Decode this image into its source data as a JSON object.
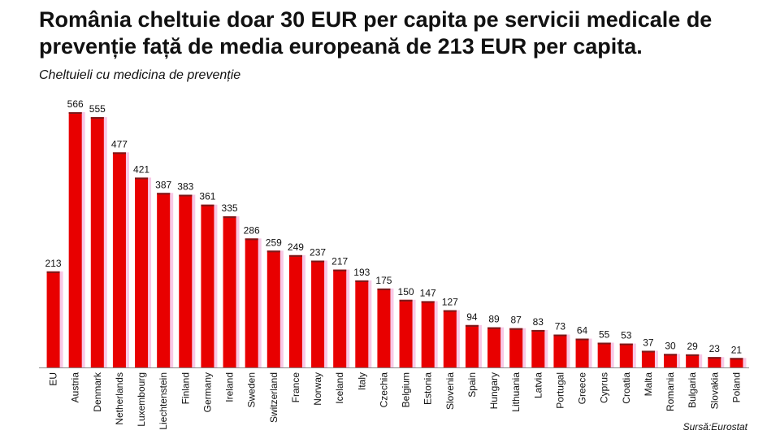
{
  "title": "România cheltuie doar 30 EUR per capita pe servicii medicale de prevenție față de media europeană de 213 EUR per capita.",
  "subtitle": "Cheltuieli cu medicina de prevenție",
  "source": "Sursă:Eurostat",
  "colors": {
    "bar": "#e80000",
    "bar_shadow": "#f8c8e6",
    "bar_top": "#7a1a1a",
    "axis": "#888888"
  },
  "chart_data": {
    "type": "bar",
    "title": "România cheltuie doar 30 EUR per capita pe servicii medicale de prevenție față de media europeană de 213 EUR per capita.",
    "subtitle": "Cheltuieli cu medicina de prevenție",
    "xlabel": "",
    "ylabel": "",
    "ylim": [
      0,
      566
    ],
    "grid": false,
    "categories": [
      "EU",
      "Austria",
      "Denmark",
      "Netherlands",
      "Luxembourg",
      "Liechtenstein",
      "Finland",
      "Germany",
      "Ireland",
      "Sweden",
      "Switzerland",
      "France",
      "Norway",
      "Iceland",
      "Italy",
      "Czechia",
      "Belgium",
      "Estonia",
      "Slovenia",
      "Spain",
      "Hungary",
      "Lithuania",
      "Latvia",
      "Portugal",
      "Greece",
      "Cyprus",
      "Croatia",
      "Malta",
      "Romania",
      "Bulgaria",
      "Slovakia",
      "Poland"
    ],
    "values": [
      213,
      566,
      555,
      477,
      421,
      387,
      383,
      361,
      335,
      286,
      259,
      249,
      237,
      217,
      193,
      175,
      150,
      147,
      127,
      94,
      89,
      87,
      83,
      73,
      64,
      55,
      53,
      37,
      30,
      29,
      23,
      21
    ]
  }
}
